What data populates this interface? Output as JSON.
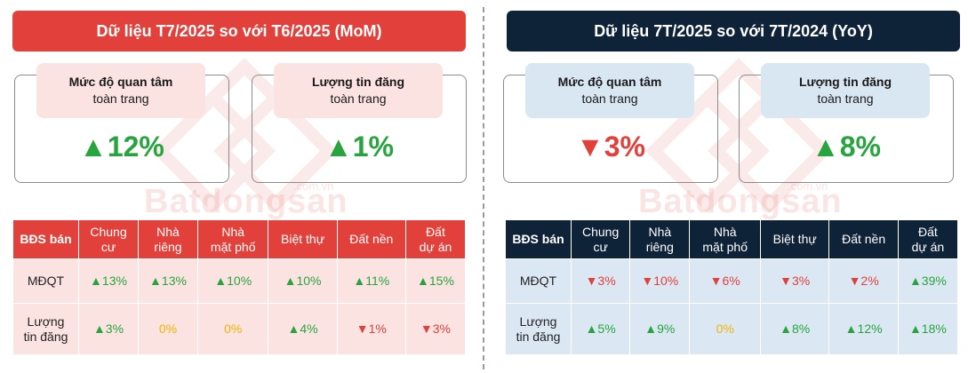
{
  "left": {
    "title": "Dữ liệu T7/2025 so với T6/2025 (MoM)",
    "cards": [
      {
        "label1": "Mức độ quan tâm",
        "label2": "toàn trang",
        "value": "▲12%",
        "trend": "up"
      },
      {
        "label1": "Lượng tin đăng",
        "label2": "toàn trang",
        "value": "▲1%",
        "trend": "up"
      }
    ],
    "table": {
      "headers": [
        "BĐS bán",
        "Chung\ncư",
        "Nhà\nriêng",
        "Nhà\nmặt phố",
        "Biệt thự",
        "Đất nền",
        "Đất\ndự án"
      ],
      "rows": [
        {
          "label": "MĐQT",
          "cells": [
            {
              "v": "▲13%",
              "t": "up"
            },
            {
              "v": "▲13%",
              "t": "up"
            },
            {
              "v": "▲10%",
              "t": "up"
            },
            {
              "v": "▲10%",
              "t": "up"
            },
            {
              "v": "▲11%",
              "t": "up"
            },
            {
              "v": "▲15%",
              "t": "up"
            }
          ]
        },
        {
          "label": "Lượng\ntin đăng",
          "cells": [
            {
              "v": "▲3%",
              "t": "up"
            },
            {
              "v": "0%",
              "t": "zero"
            },
            {
              "v": "0%",
              "t": "zero"
            },
            {
              "v": "▲4%",
              "t": "up"
            },
            {
              "v": "▼1%",
              "t": "down"
            },
            {
              "v": "▼3%",
              "t": "down"
            }
          ]
        }
      ]
    }
  },
  "right": {
    "title": "Dữ liệu 7T/2025 so với 7T/2024 (YoY)",
    "cards": [
      {
        "label1": "Mức độ quan tâm",
        "label2": "toàn trang",
        "value": "▼3%",
        "trend": "down"
      },
      {
        "label1": "Lượng tin đăng",
        "label2": "toàn trang",
        "value": "▲8%",
        "trend": "up"
      }
    ],
    "table": {
      "headers": [
        "BĐS bán",
        "Chung\ncư",
        "Nhà\nriêng",
        "Nhà\nmặt phố",
        "Biệt thự",
        "Đất nền",
        "Đất\ndự án"
      ],
      "rows": [
        {
          "label": "MĐQT",
          "cells": [
            {
              "v": "▼3%",
              "t": "down"
            },
            {
              "v": "▼10%",
              "t": "down"
            },
            {
              "v": "▼6%",
              "t": "down"
            },
            {
              "v": "▼3%",
              "t": "down"
            },
            {
              "v": "▼2%",
              "t": "down"
            },
            {
              "v": "▲39%",
              "t": "up"
            }
          ]
        },
        {
          "label": "Lượng\ntin đăng",
          "cells": [
            {
              "v": "▲5%",
              "t": "up"
            },
            {
              "v": "▲9%",
              "t": "up"
            },
            {
              "v": "0%",
              "t": "zero"
            },
            {
              "v": "▲8%",
              "t": "up"
            },
            {
              "v": "▲12%",
              "t": "up"
            },
            {
              "v": "▲18%",
              "t": "up"
            }
          ]
        }
      ]
    }
  },
  "watermark": {
    "brand": "Batdongsan",
    "domain": ".com.vn"
  },
  "colors": {
    "red": "#e2403a",
    "navy": "#0e2238",
    "green": "#27a43d",
    "yellow": "#f0b400"
  }
}
